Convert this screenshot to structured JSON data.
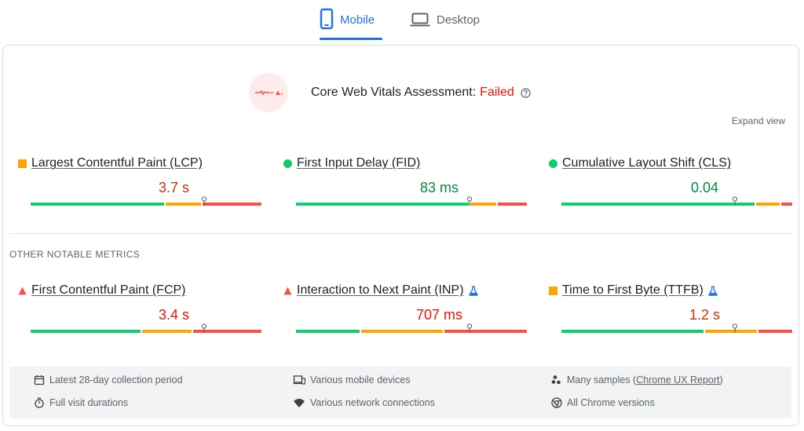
{
  "tabs": [
    {
      "label": "Mobile",
      "icon": "smartphone-icon",
      "active": true
    },
    {
      "label": "Desktop",
      "icon": "laptop-icon",
      "active": false
    }
  ],
  "assessment": {
    "title": "Core Web Vitals Assessment:",
    "status": "Failed",
    "status_color": "#eb0f00"
  },
  "expand_label": "Expand view",
  "core_metrics": [
    {
      "name": "Largest Contentful Paint (LCP)",
      "value": "3.7 s",
      "rating": "average",
      "marker": "orange-square-icon",
      "value_color": "#c33300",
      "good_pct": 58,
      "ni_pct": 16,
      "poor_pct": 26,
      "position_pct": 75
    },
    {
      "name": "First Input Delay (FID)",
      "value": "83 ms",
      "rating": "good",
      "marker": "green-circle-icon",
      "value_color": "#018642",
      "good_pct": 75,
      "ni_pct": 12,
      "poor_pct": 13,
      "position_pct": 75
    },
    {
      "name": "Cumulative Layout Shift (CLS)",
      "value": "0.04",
      "rating": "good",
      "marker": "green-circle-icon",
      "value_color": "#018642",
      "good_pct": 84,
      "ni_pct": 11,
      "poor_pct": 5,
      "position_pct": 75
    }
  ],
  "other_title": "OTHER NOTABLE METRICS",
  "other_metrics": [
    {
      "name": "First Contentful Paint (FCP)",
      "value": "3.4 s",
      "rating": "poor",
      "marker": "red-triangle-icon",
      "value_color": "#eb0f00",
      "lab": false,
      "good_pct": 48,
      "ni_pct": 22,
      "poor_pct": 30,
      "position_pct": 75
    },
    {
      "name": "Interaction to Next Paint (INP)",
      "value": "707 ms",
      "rating": "poor",
      "marker": "red-triangle-icon",
      "value_color": "#eb0f00",
      "lab": true,
      "good_pct": 28,
      "ni_pct": 36,
      "poor_pct": 36,
      "position_pct": 75
    },
    {
      "name": "Time to First Byte (TTFB)",
      "value": "1.2 s",
      "rating": "average",
      "marker": "orange-square-icon",
      "value_color": "#c33300",
      "lab": true,
      "good_pct": 62,
      "ni_pct": 23,
      "poor_pct": 15,
      "position_pct": 75
    }
  ],
  "footer": {
    "items": [
      {
        "icon": "calendar-icon",
        "text": "Latest 28-day collection period"
      },
      {
        "icon": "devices-icon",
        "text": "Various mobile devices"
      },
      {
        "icon": "samples-icon",
        "text": "Many samples (",
        "link": "Chrome UX Report",
        "suffix": ")"
      },
      {
        "icon": "stopwatch-icon",
        "text": "Full visit durations"
      },
      {
        "icon": "wifi-icon",
        "text": "Various network connections"
      },
      {
        "icon": "chrome-icon",
        "text": "All Chrome versions"
      }
    ]
  },
  "colors": {
    "accent": "#1a73e8",
    "good": "#0cce6b",
    "average": "#ffa400",
    "poor": "#ff4e42"
  }
}
